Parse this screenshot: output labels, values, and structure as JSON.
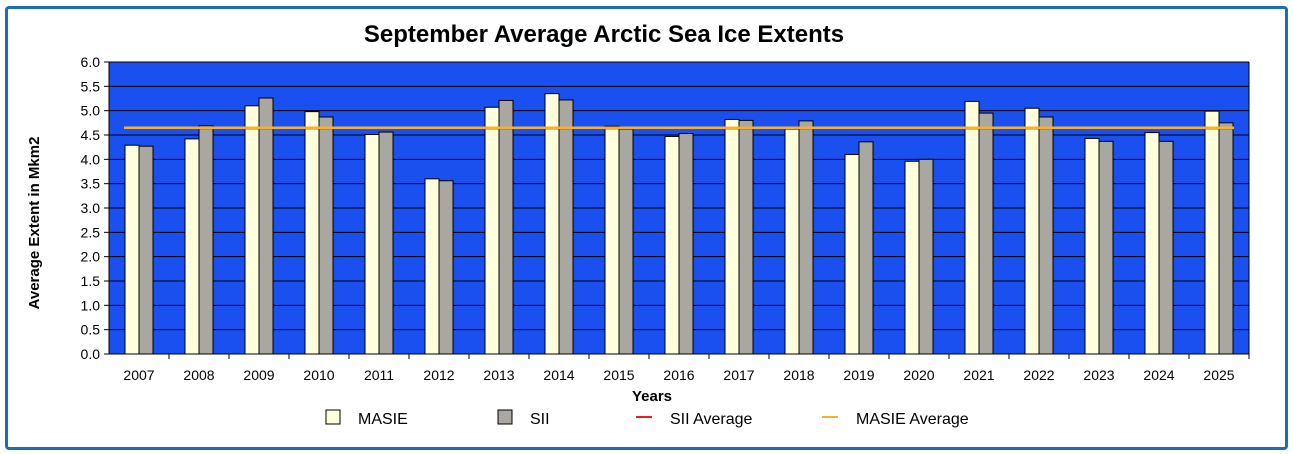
{
  "chart_data": {
    "type": "bar",
    "title": "September Average Arctic Sea Ice Extents",
    "xlabel": "Years",
    "ylabel": "Average Extent in Mkm2",
    "ylim": [
      0,
      6.0
    ],
    "yticks": [
      "0.0",
      "0.5",
      "1.0",
      "1.5",
      "2.0",
      "2.5",
      "3.0",
      "3.5",
      "4.0",
      "4.5",
      "5.0",
      "5.5",
      "6.0"
    ],
    "grid": true,
    "categories": [
      "2007",
      "2008",
      "2009",
      "2010",
      "2011",
      "2012",
      "2013",
      "2014",
      "2015",
      "2016",
      "2017",
      "2018",
      "2019",
      "2020",
      "2021",
      "2022",
      "2023",
      "2024",
      "2025"
    ],
    "series": [
      {
        "name": "MASIE",
        "kind": "bar",
        "color": "#ffffdd",
        "values": [
          4.29,
          4.42,
          5.1,
          4.98,
          4.51,
          3.6,
          5.07,
          5.35,
          4.68,
          4.47,
          4.82,
          4.62,
          4.1,
          3.96,
          5.19,
          5.05,
          4.43,
          4.55,
          4.99
        ]
      },
      {
        "name": "SII",
        "kind": "bar",
        "color": "#aaa7a1",
        "values": [
          4.27,
          4.69,
          5.26,
          4.87,
          4.56,
          3.56,
          5.21,
          5.22,
          4.62,
          4.53,
          4.8,
          4.79,
          4.36,
          4.0,
          4.95,
          4.87,
          4.37,
          4.37,
          4.75
        ]
      },
      {
        "name": "SII Average",
        "kind": "line",
        "color": "#e8201c",
        "value": 4.64
      },
      {
        "name": "MASIE Average",
        "kind": "line",
        "color": "#f5b030",
        "value": 4.65
      }
    ],
    "colors": {
      "plot_background": "#1a4ff0",
      "gridline": "#000000",
      "frame": "#1a6fb5"
    }
  }
}
